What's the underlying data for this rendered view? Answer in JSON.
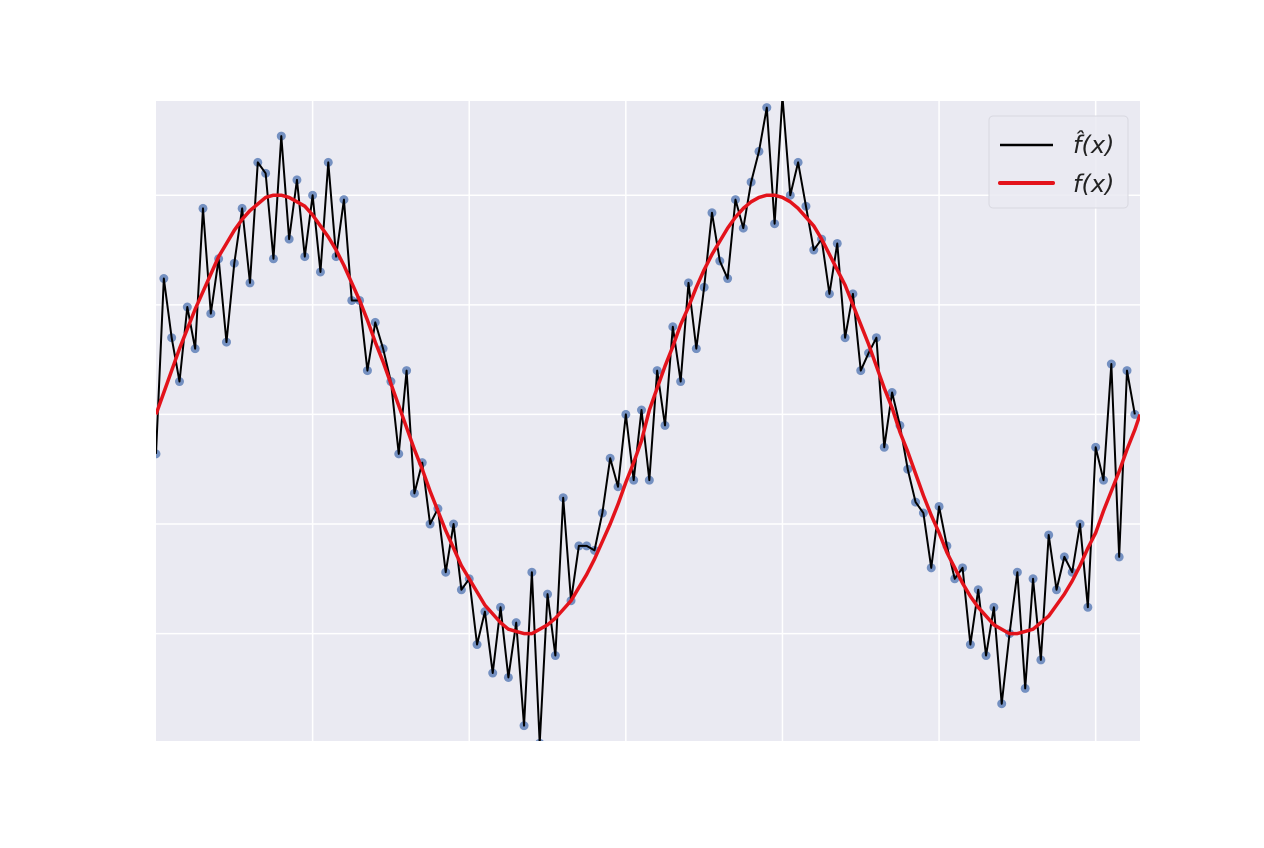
{
  "chart_data": {
    "type": "line",
    "title": "",
    "xlabel": "",
    "ylabel": "",
    "xlim": [
      0,
      12.566
    ],
    "ylim": [
      -1.49,
      1.43
    ],
    "grid": true,
    "xgrid": [
      2,
      4,
      6,
      8,
      10,
      12
    ],
    "ygrid": [
      -1,
      -0.5,
      0,
      0.5,
      1
    ],
    "tick_labels_shown": false,
    "legend_placement": "top-right",
    "x_start": 0,
    "x_step": 0.1,
    "series": [
      {
        "name": "f̂(x)",
        "style": "line-with-markers",
        "color": "#000000",
        "marker_color": "#4c72b0",
        "values": [
          -0.18,
          0.62,
          0.35,
          0.15,
          0.49,
          0.3,
          0.94,
          0.46,
          0.71,
          0.33,
          0.69,
          0.94,
          0.6,
          1.15,
          1.1,
          0.71,
          1.27,
          0.8,
          1.07,
          0.72,
          1.0,
          0.65,
          1.15,
          0.72,
          0.98,
          0.52,
          0.52,
          0.2,
          0.42,
          0.3,
          0.15,
          -0.18,
          0.2,
          -0.36,
          -0.22,
          -0.5,
          -0.43,
          -0.72,
          -0.5,
          -0.8,
          -0.75,
          -1.05,
          -0.9,
          -1.18,
          -0.88,
          -1.2,
          -0.95,
          -1.42,
          -0.72,
          -1.5,
          -0.82,
          -1.1,
          -0.38,
          -0.85,
          -0.6,
          -0.6,
          -0.62,
          -0.45,
          -0.2,
          -0.33,
          0.0,
          -0.3,
          0.02,
          -0.3,
          0.2,
          -0.05,
          0.4,
          0.15,
          0.6,
          0.3,
          0.58,
          0.92,
          0.7,
          0.62,
          0.98,
          0.85,
          1.06,
          1.2,
          1.4,
          0.87,
          1.45,
          1.0,
          1.15,
          0.95,
          0.75,
          0.8,
          0.55,
          0.78,
          0.35,
          0.55,
          0.2,
          0.28,
          0.35,
          -0.15,
          0.1,
          -0.05,
          -0.25,
          -0.4,
          -0.45,
          -0.7,
          -0.42,
          -0.6,
          -0.75,
          -0.7,
          -1.05,
          -0.8,
          -1.1,
          -0.88,
          -1.32,
          -1.0,
          -0.72,
          -1.25,
          -0.75,
          -1.12,
          -0.55,
          -0.8,
          -0.65,
          -0.72,
          -0.5,
          -0.88,
          -0.15,
          -0.3,
          0.23,
          -0.65,
          0.2,
          0.0
        ]
      },
      {
        "name": "f(x)",
        "style": "line",
        "color": "#e3131b",
        "values": [
          0,
          0.1,
          0.2,
          0.3,
          0.39,
          0.48,
          0.56,
          0.64,
          0.72,
          0.78,
          0.84,
          0.89,
          0.93,
          0.96,
          0.99,
          1.0,
          1.0,
          0.99,
          0.97,
          0.95,
          0.91,
          0.86,
          0.81,
          0.75,
          0.68,
          0.6,
          0.52,
          0.43,
          0.33,
          0.24,
          0.14,
          0.04,
          -0.06,
          -0.16,
          -0.25,
          -0.35,
          -0.44,
          -0.53,
          -0.61,
          -0.69,
          -0.75,
          -0.81,
          -0.87,
          -0.91,
          -0.95,
          -0.98,
          -0.99,
          -1.0,
          -1.0,
          -0.98,
          -0.96,
          -0.93,
          -0.89,
          -0.85,
          -0.79,
          -0.73,
          -0.66,
          -0.58,
          -0.5,
          -0.41,
          -0.31,
          -0.22,
          -0.12,
          0.02,
          0.12,
          0.22,
          0.31,
          0.41,
          0.49,
          0.58,
          0.66,
          0.73,
          0.79,
          0.85,
          0.9,
          0.94,
          0.97,
          0.99,
          1.0,
          1.0,
          0.99,
          0.97,
          0.94,
          0.9,
          0.86,
          0.8,
          0.73,
          0.66,
          0.59,
          0.5,
          0.41,
          0.32,
          0.22,
          0.12,
          0.03,
          -0.08,
          -0.17,
          -0.27,
          -0.37,
          -0.46,
          -0.54,
          -0.63,
          -0.7,
          -0.77,
          -0.83,
          -0.88,
          -0.92,
          -0.96,
          -0.98,
          -1.0,
          -1.0,
          -0.99,
          -0.98,
          -0.95,
          -0.92,
          -0.87,
          -0.82,
          -0.76,
          -0.69,
          -0.61,
          -0.54,
          -0.44,
          -0.35,
          -0.26,
          -0.16,
          -0.07
        ]
      }
    ],
    "background_color": "#eaeaf2",
    "grid_color": "#ffffff"
  }
}
